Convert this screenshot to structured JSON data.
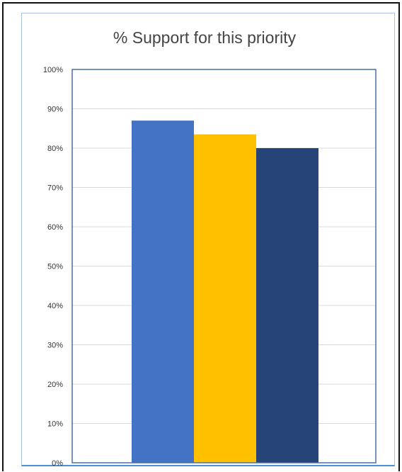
{
  "chart_data": {
    "type": "bar",
    "title": "% Support for this priority",
    "categories": [
      "",
      "",
      ""
    ],
    "values": [
      0.87,
      0.835,
      0.8
    ],
    "colors": [
      "#4472c4",
      "#ffc000",
      "#264478"
    ],
    "ylim": [
      0,
      1
    ],
    "yticks": [
      "0%",
      "10%",
      "20%",
      "30%",
      "40%",
      "50%",
      "60%",
      "70%",
      "80%",
      "90%",
      "100%"
    ],
    "grid": true,
    "legend": "none",
    "xlabel": "",
    "ylabel": ""
  }
}
